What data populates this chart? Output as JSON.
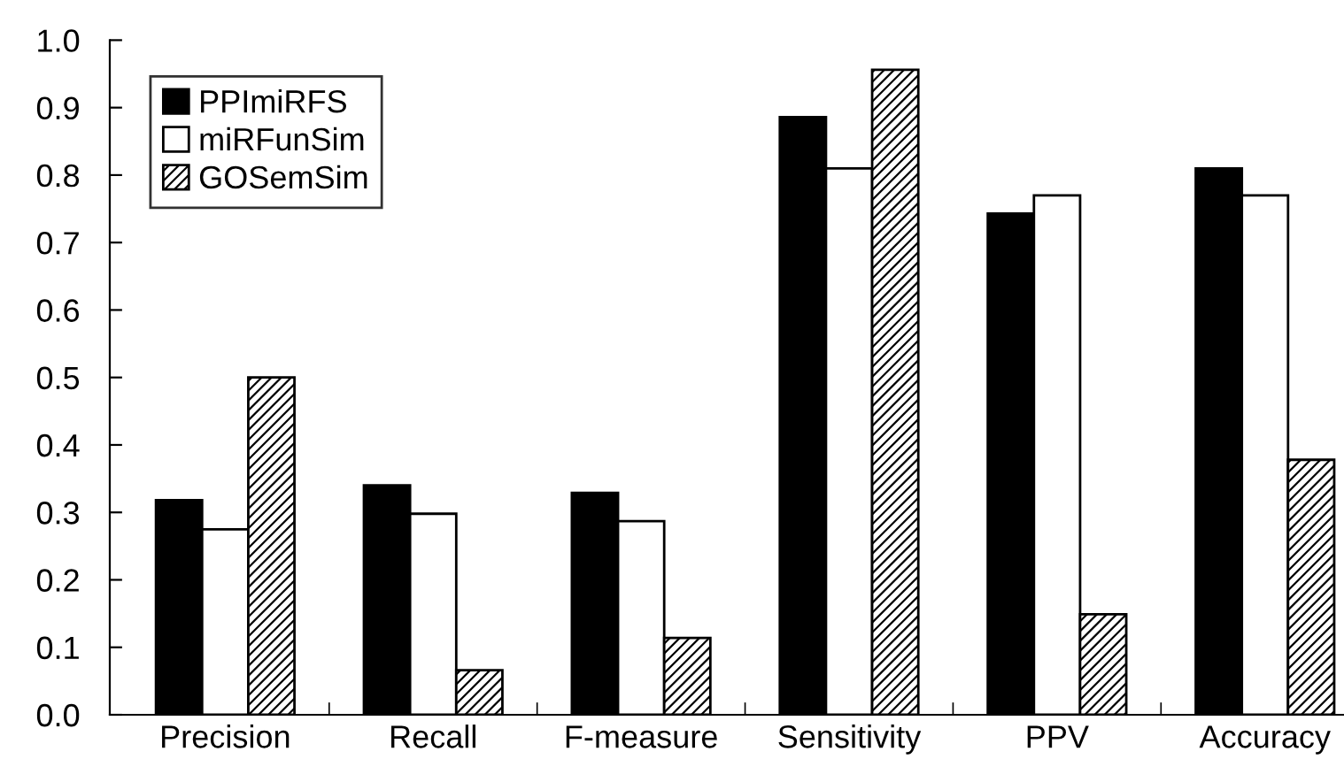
{
  "chart_data": {
    "type": "bar",
    "categories": [
      "Precision",
      "Recall",
      "F-measure",
      "Sensitivity",
      "PPV",
      "Accuracy"
    ],
    "series": [
      {
        "name": "PPImiRFS",
        "color": "#000000",
        "values": [
          0.318,
          0.34,
          0.329,
          0.886,
          0.743,
          0.81
        ]
      },
      {
        "name": "miRFunSim",
        "color": "#ffffff",
        "values": [
          0.275,
          0.298,
          0.287,
          0.81,
          0.77,
          0.77
        ]
      },
      {
        "name": "GOSemSim",
        "color": "#000000",
        "values": [
          0.5,
          0.066,
          0.114,
          0.956,
          0.149,
          0.378
        ]
      }
    ],
    "ylim": [
      0,
      1.0
    ],
    "yticks": [
      {
        "value": 0,
        "label": "0.0"
      },
      {
        "value": 0.1,
        "label": "0.1"
      },
      {
        "value": 0.2,
        "label": "0.2"
      },
      {
        "value": 0.3,
        "label": "0.3"
      },
      {
        "value": 0.4,
        "label": "0.4"
      },
      {
        "value": 0.5,
        "label": "0.5"
      },
      {
        "value": 0.6,
        "label": "0.6"
      },
      {
        "value": 0.7,
        "label": "0.7"
      },
      {
        "value": 0.8,
        "label": "0.8"
      },
      {
        "value": 0.9,
        "label": "0.9"
      },
      {
        "value": 1.0,
        "label": "1.0"
      }
    ],
    "grid": false,
    "legend": "top left"
  }
}
